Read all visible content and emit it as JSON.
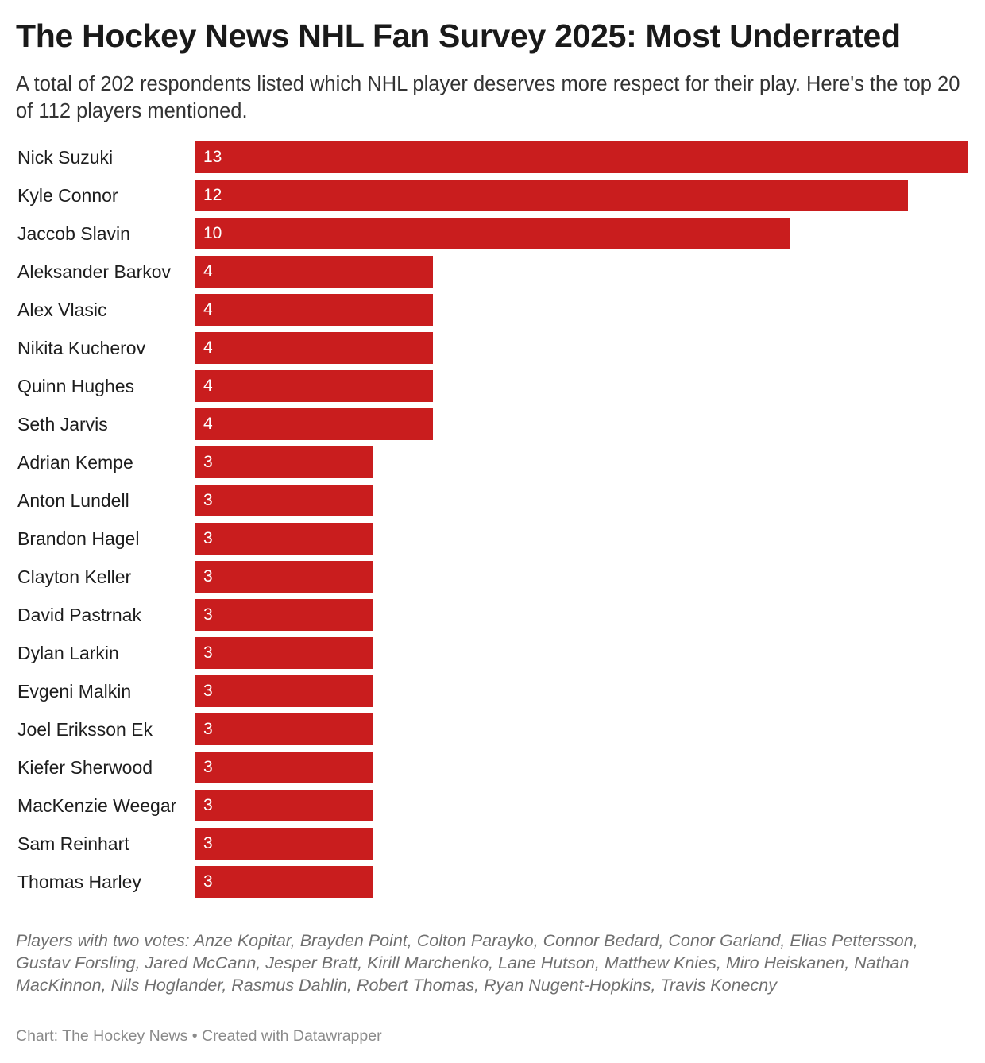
{
  "header": {
    "title": "The Hockey News NHL Fan Survey 2025: Most Underrated",
    "subtitle": "A total of 202 respondents listed which NHL player deserves more respect for their play. Here's the top 20 of 112 players mentioned."
  },
  "chart_data": {
    "type": "bar",
    "orientation": "horizontal",
    "title": "The Hockey News NHL Fan Survey 2025: Most Underrated",
    "categories": [
      "Nick Suzuki",
      "Kyle Connor",
      "Jaccob Slavin",
      "Aleksander Barkov",
      "Alex Vlasic",
      "Nikita Kucherov",
      "Quinn Hughes",
      "Seth Jarvis",
      "Adrian Kempe",
      "Anton Lundell",
      "Brandon Hagel",
      "Clayton Keller",
      "David Pastrnak",
      "Dylan Larkin",
      "Evgeni Malkin",
      "Joel Eriksson Ek",
      "Kiefer Sherwood",
      "MacKenzie Weegar",
      "Sam Reinhart",
      "Thomas Harley"
    ],
    "values": [
      13,
      12,
      10,
      4,
      4,
      4,
      4,
      4,
      3,
      3,
      3,
      3,
      3,
      3,
      3,
      3,
      3,
      3,
      3,
      3
    ],
    "xlim": [
      0,
      13
    ],
    "grid": false,
    "legend": "none",
    "bar_color": "#c91d1e",
    "value_label_color": "#ffffff"
  },
  "footer": {
    "notes": "Players with two votes: Anze Kopitar, Brayden Point, Colton Parayko, Connor Bedard, Conor Garland, Elias Pettersson, Gustav Forsling, Jared McCann, Jesper Bratt, Kirill Marchenko, Lane Hutson, Matthew Knies, Miro Heiskanen, Nathan MacKinnon, Nils Hoglander, Rasmus Dahlin, Robert Thomas, Ryan Nugent-Hopkins, Travis Konecny",
    "source": "Chart: The Hockey News • Created with Datawrapper"
  }
}
